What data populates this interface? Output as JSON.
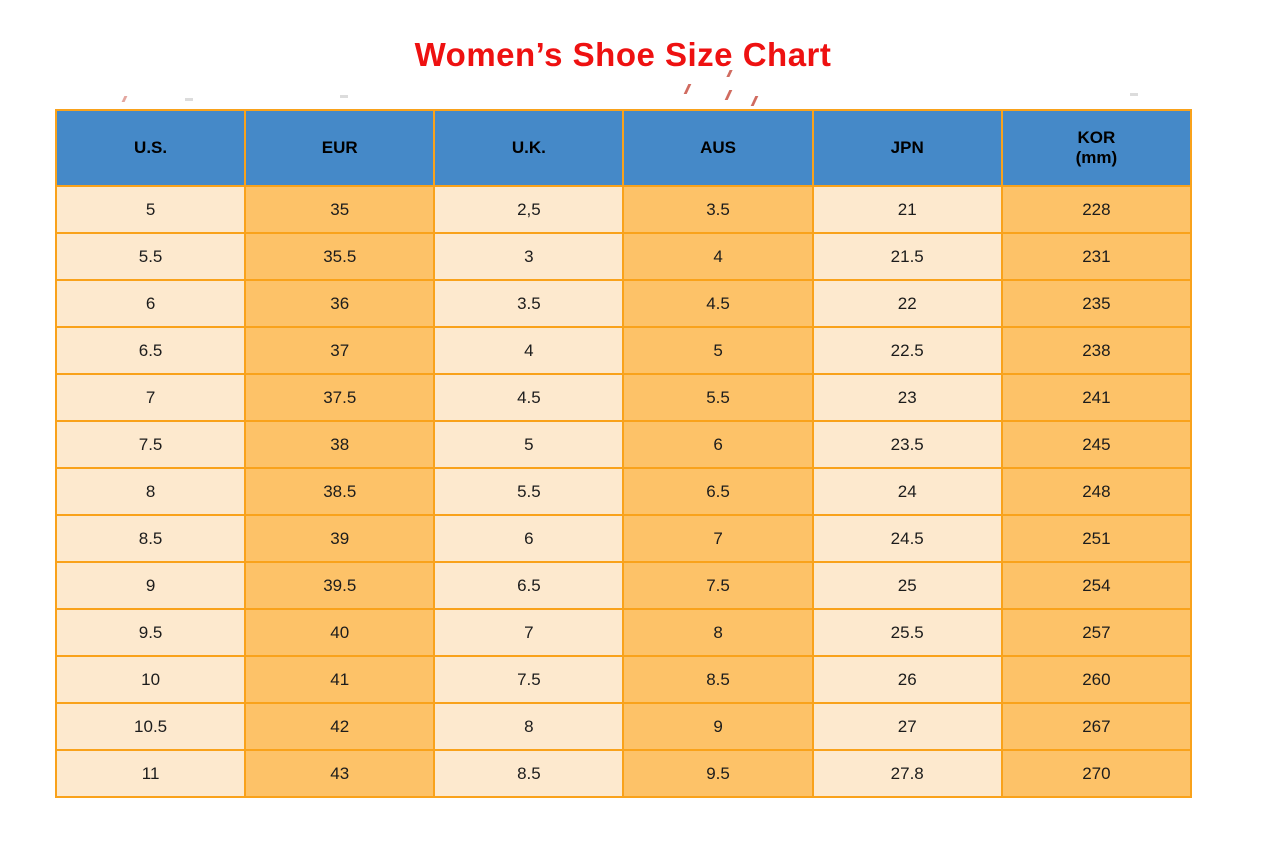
{
  "page": {
    "title": "Women’s Shoe Size Chart"
  },
  "colors": {
    "title": "#ee1111",
    "header_bg": "#4589c8",
    "cell_light": "#fde9ce",
    "cell_orange": "#fdc268",
    "border": "#f9a21b",
    "text": "#1c1c1c"
  },
  "table": {
    "headers": [
      {
        "label": "U.S."
      },
      {
        "label": "EUR"
      },
      {
        "label": "U.K."
      },
      {
        "label": "AUS"
      },
      {
        "label": "JPN"
      },
      {
        "label": "KOR",
        "sublabel": "(mm)"
      }
    ]
  },
  "chart_data": {
    "type": "table",
    "title": "Women’s Shoe Size Chart",
    "columns": [
      "U.S.",
      "EUR",
      "U.K.",
      "AUS",
      "JPN",
      "KOR (mm)"
    ],
    "rows": [
      [
        "5",
        "35",
        "2,5",
        "3.5",
        "21",
        "228"
      ],
      [
        "5.5",
        "35.5",
        "3",
        "4",
        "21.5",
        "231"
      ],
      [
        "6",
        "36",
        "3.5",
        "4.5",
        "22",
        "235"
      ],
      [
        "6.5",
        "37",
        "4",
        "5",
        "22.5",
        "238"
      ],
      [
        "7",
        "37.5",
        "4.5",
        "5.5",
        "23",
        "241"
      ],
      [
        "7.5",
        "38",
        "5",
        "6",
        "23.5",
        "245"
      ],
      [
        "8",
        "38.5",
        "5.5",
        "6.5",
        "24",
        "248"
      ],
      [
        "8.5",
        "39",
        "6",
        "7",
        "24.5",
        "251"
      ],
      [
        "9",
        "39.5",
        "6.5",
        "7.5",
        "25",
        "254"
      ],
      [
        "9.5",
        "40",
        "7",
        "8",
        "25.5",
        "257"
      ],
      [
        "10",
        "41",
        "7.5",
        "8.5",
        "26",
        "260"
      ],
      [
        "10.5",
        "42",
        "8",
        "9",
        "27",
        "267"
      ],
      [
        "11",
        "43",
        "8.5",
        "9.5",
        "27.8",
        "270"
      ]
    ]
  }
}
